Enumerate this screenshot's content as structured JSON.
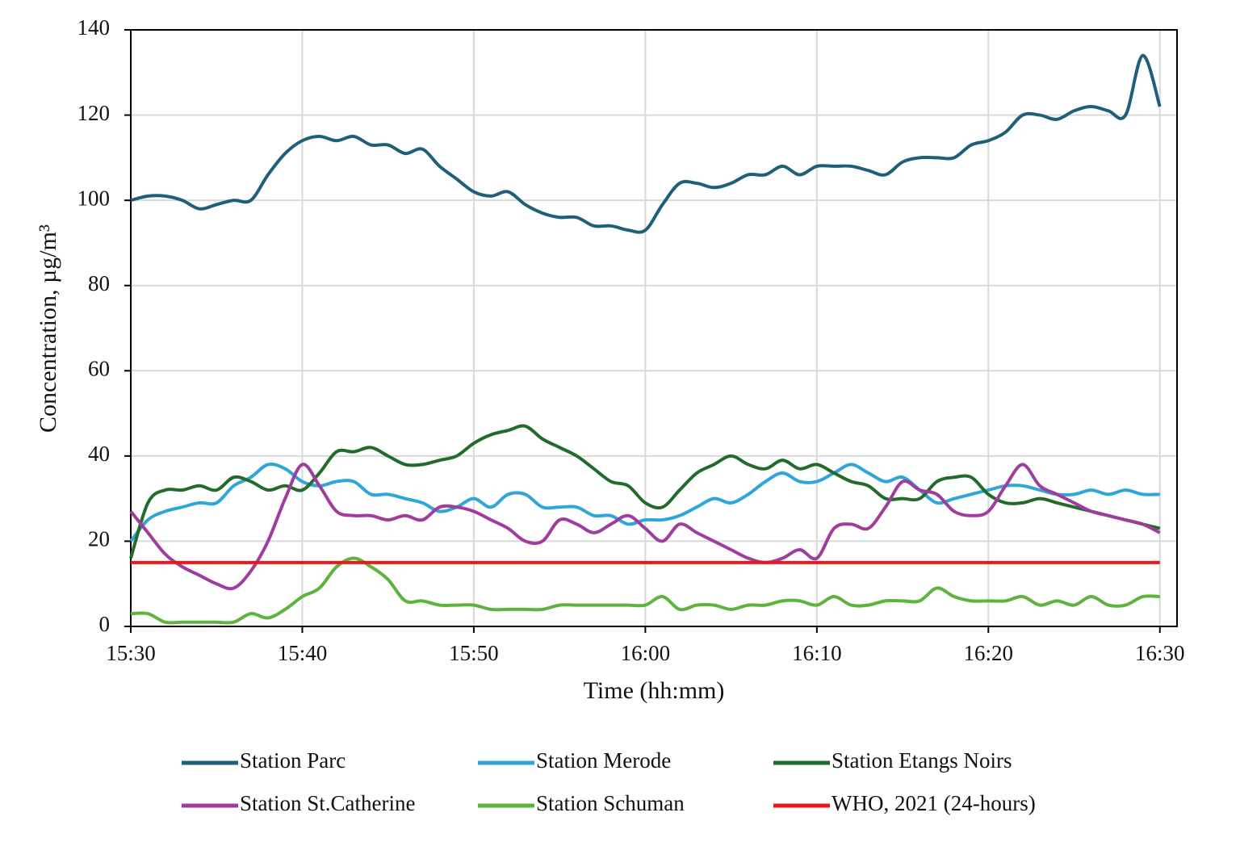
{
  "chart_data": {
    "type": "line",
    "xlabel": "Time (hh:mm)",
    "ylabel": "Concentration, µg/m³",
    "x": [
      "15:30",
      "15:31",
      "15:32",
      "15:33",
      "15:34",
      "15:35",
      "15:36",
      "15:37",
      "15:38",
      "15:39",
      "15:40",
      "15:41",
      "15:42",
      "15:43",
      "15:44",
      "15:45",
      "15:46",
      "15:47",
      "15:48",
      "15:49",
      "15:50",
      "15:51",
      "15:52",
      "15:53",
      "15:54",
      "15:55",
      "15:56",
      "15:57",
      "15:58",
      "15:59",
      "16:00",
      "16:01",
      "16:02",
      "16:03",
      "16:04",
      "16:05",
      "16:06",
      "16:07",
      "16:08",
      "16:09",
      "16:10",
      "16:11",
      "16:12",
      "16:13",
      "16:14",
      "16:15",
      "16:16",
      "16:17",
      "16:18",
      "16:19",
      "16:20",
      "16:21",
      "16:22",
      "16:23",
      "16:24",
      "16:25",
      "16:26",
      "16:27",
      "16:28",
      "16:29",
      "16:30"
    ],
    "series": [
      {
        "name": "Station Parc",
        "color": "#1f5f7a",
        "values": [
          100,
          101,
          101,
          100,
          98,
          99,
          100,
          100,
          106,
          111,
          114,
          115,
          114,
          115,
          113,
          113,
          111,
          112,
          108,
          105,
          102,
          101,
          102,
          99,
          97,
          96,
          96,
          94,
          94,
          93,
          93,
          99,
          104,
          104,
          103,
          104,
          106,
          106,
          108,
          106,
          108,
          108,
          108,
          107,
          106,
          109,
          110,
          110,
          110,
          113,
          114,
          116,
          120,
          120,
          119,
          121,
          122,
          121,
          120,
          134,
          122
        ]
      },
      {
        "name": "Station Merode",
        "color": "#2ea6da",
        "values": [
          20,
          25,
          27,
          28,
          29,
          29,
          33,
          35,
          38,
          37,
          34,
          33,
          34,
          34,
          31,
          31,
          30,
          29,
          27,
          28,
          30,
          28,
          31,
          31,
          28,
          28,
          28,
          26,
          26,
          24,
          25,
          25,
          26,
          28,
          30,
          29,
          31,
          34,
          36,
          34,
          34,
          36,
          38,
          36,
          34,
          35,
          32,
          29,
          30,
          31,
          32,
          33,
          33,
          32,
          31,
          31,
          32,
          31,
          32,
          31,
          31
        ]
      },
      {
        "name": "Station Etangs Noirs",
        "color": "#226b2b",
        "values": [
          16,
          29,
          32,
          32,
          33,
          32,
          35,
          34,
          32,
          33,
          32,
          36,
          41,
          41,
          42,
          40,
          38,
          38,
          39,
          40,
          43,
          45,
          46,
          47,
          44,
          42,
          40,
          37,
          34,
          33,
          29,
          28,
          32,
          36,
          38,
          40,
          38,
          37,
          39,
          37,
          38,
          36,
          34,
          33,
          30,
          30,
          30,
          34,
          35,
          35,
          31,
          29,
          29,
          30,
          29,
          28,
          27,
          26,
          25,
          24,
          23
        ]
      },
      {
        "name": "Station St.Catherine",
        "color": "#a13c9f",
        "values": [
          27,
          22,
          17,
          14,
          12,
          10,
          9,
          13,
          20,
          30,
          38,
          33,
          27,
          26,
          26,
          25,
          26,
          25,
          28,
          28,
          27,
          25,
          23,
          20,
          20,
          25,
          24,
          22,
          24,
          26,
          23,
          20,
          24,
          22,
          20,
          18,
          16,
          15,
          16,
          18,
          16,
          23,
          24,
          23,
          28,
          34,
          32,
          31,
          27,
          26,
          27,
          33,
          38,
          33,
          31,
          29,
          27,
          26,
          25,
          24,
          22
        ]
      },
      {
        "name": "Station Schuman",
        "color": "#5db33d",
        "values": [
          3,
          3,
          1,
          1,
          1,
          1,
          1,
          3,
          2,
          4,
          7,
          9,
          14,
          16,
          14,
          11,
          6,
          6,
          5,
          5,
          5,
          4,
          4,
          4,
          4,
          5,
          5,
          5,
          5,
          5,
          5,
          7,
          4,
          5,
          5,
          4,
          5,
          5,
          6,
          6,
          5,
          7,
          5,
          5,
          6,
          6,
          6,
          9,
          7,
          6,
          6,
          6,
          7,
          5,
          6,
          5,
          7,
          5,
          5,
          7,
          7
        ]
      },
      {
        "name": "WHO, 2021 (24-hours)",
        "color": "#e8191b",
        "values": [
          15,
          15,
          15,
          15,
          15,
          15,
          15,
          15,
          15,
          15,
          15,
          15,
          15,
          15,
          15,
          15,
          15,
          15,
          15,
          15,
          15,
          15,
          15,
          15,
          15,
          15,
          15,
          15,
          15,
          15,
          15,
          15,
          15,
          15,
          15,
          15,
          15,
          15,
          15,
          15,
          15,
          15,
          15,
          15,
          15,
          15,
          15,
          15,
          15,
          15,
          15,
          15,
          15,
          15,
          15,
          15,
          15,
          15,
          15,
          15,
          15
        ]
      }
    ],
    "xlim": [
      "15:30",
      "16:31"
    ],
    "xticks": [
      "15:30",
      "15:40",
      "15:50",
      "16:00",
      "16:10",
      "16:20",
      "16:30"
    ],
    "ylim": [
      0,
      140
    ],
    "yticks": [
      0,
      20,
      40,
      60,
      80,
      100,
      120,
      140
    ],
    "grid": true
  }
}
